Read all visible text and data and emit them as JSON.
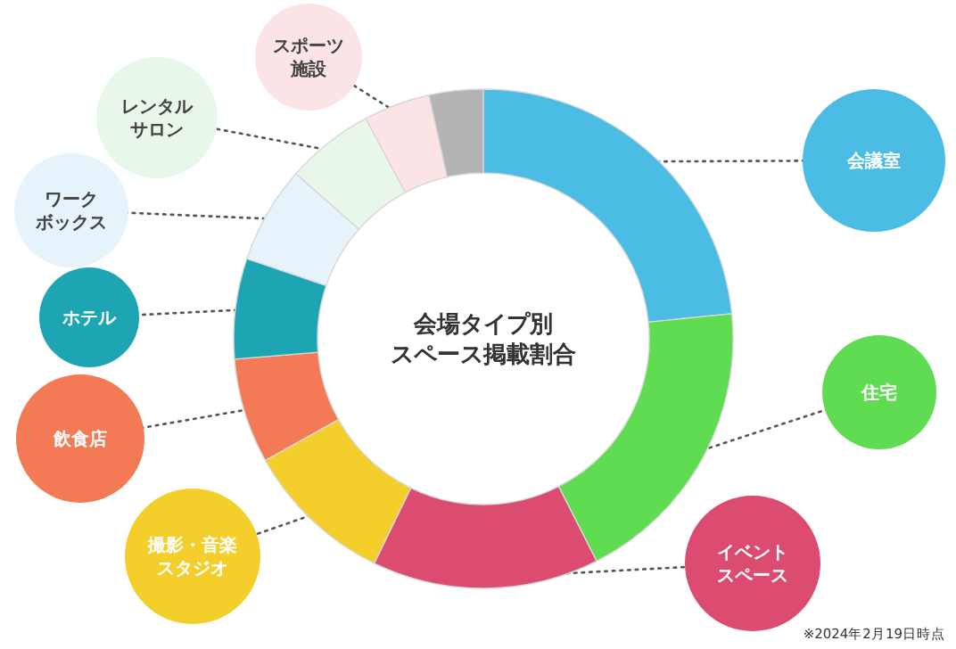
{
  "chart_data": {
    "type": "donut",
    "title": "会場タイプ別スペース掲載割合",
    "categories": [
      "会議室",
      "住宅",
      "イベントスペース",
      "撮影・音楽スタジオ",
      "飲食店",
      "ホテル",
      "ワークボックス",
      "レンタルサロン",
      "スポーツ施設",
      null
    ],
    "values": [
      23.4,
      19.1,
      14.7,
      9.7,
      6.8,
      6.5,
      6.3,
      5.7,
      4.3,
      3.5
    ],
    "colors": [
      "#4bbde5",
      "#5fdc52",
      "#dc4b70",
      "#f4cf2c",
      "#f47a55",
      "#1ea5b4",
      "#e6f3fb",
      "#e9f7ea",
      "#fbe3e6",
      "#b4b4b4"
    ],
    "annotations": [
      "※2024年2月19日時点"
    ]
  }
}
